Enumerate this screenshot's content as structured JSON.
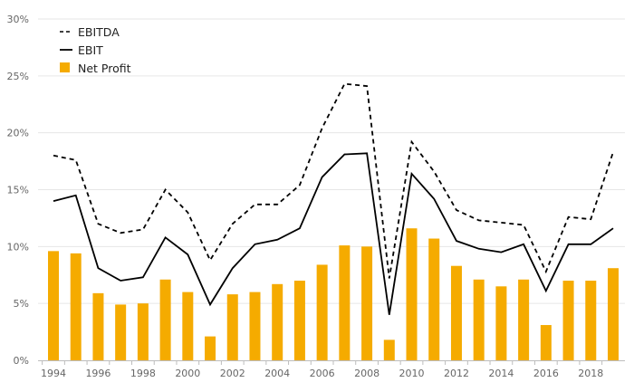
{
  "chart_data": {
    "type": "bar",
    "title": "",
    "xlabel": "",
    "ylabel": "",
    "x": [
      1994,
      1995,
      1996,
      1997,
      1998,
      1999,
      2000,
      2001,
      2002,
      2003,
      2004,
      2005,
      2006,
      2007,
      2008,
      2009,
      2010,
      2011,
      2012,
      2013,
      2014,
      2015,
      2016,
      2017,
      2018,
      2019
    ],
    "x_tick_labels": [
      "1994",
      "1996",
      "1998",
      "2000",
      "2002",
      "2004",
      "2006",
      "2008",
      "2010",
      "2012",
      "2014",
      "2016",
      "2018"
    ],
    "y_tick_labels": [
      "0%",
      "5%",
      "10%",
      "15%",
      "20%",
      "25%",
      "30%"
    ],
    "ylim": [
      0,
      30
    ],
    "grid": "horizontal",
    "legend_position": "top-left",
    "series": [
      {
        "name": "EBITDA",
        "kind": "line",
        "style": "dashed",
        "color": "#000000",
        "values": [
          18.0,
          17.6,
          12.0,
          11.2,
          11.5,
          15.0,
          13.0,
          8.8,
          12.0,
          13.7,
          13.7,
          15.4,
          20.4,
          24.3,
          24.1,
          7.2,
          19.2,
          16.6,
          13.2,
          12.3,
          12.1,
          11.9,
          7.8,
          12.6,
          12.4,
          18.3
        ]
      },
      {
        "name": "EBIT",
        "kind": "line",
        "style": "solid",
        "color": "#000000",
        "values": [
          14.0,
          14.5,
          8.1,
          7.0,
          7.3,
          10.8,
          9.3,
          4.9,
          8.1,
          10.2,
          10.6,
          11.6,
          16.1,
          18.1,
          18.2,
          4.0,
          16.4,
          14.2,
          10.5,
          9.8,
          9.5,
          10.2,
          6.1,
          10.2,
          10.2,
          11.6
        ]
      },
      {
        "name": "Net Profit",
        "kind": "bar",
        "color": "#f5ab00",
        "values": [
          9.6,
          9.4,
          5.9,
          4.9,
          5.0,
          7.1,
          6.0,
          2.1,
          5.8,
          6.0,
          6.7,
          7.0,
          8.4,
          10.1,
          10.0,
          1.8,
          11.6,
          10.7,
          8.3,
          7.1,
          6.5,
          7.1,
          3.1,
          7.0,
          7.0,
          8.1
        ]
      }
    ]
  }
}
